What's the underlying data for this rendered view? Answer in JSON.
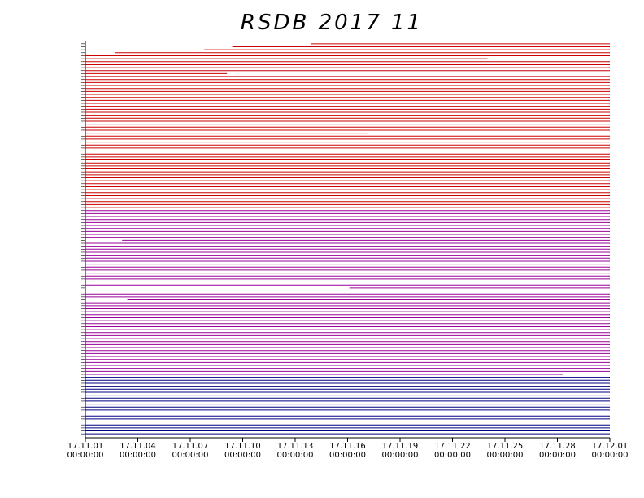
{
  "chart_data": {
    "type": "availability",
    "title": "RSDB  2017  11",
    "xlim": [
      0,
      30
    ],
    "xticks": [
      {
        "value": 0,
        "label": "17.11.01\n00:00:00"
      },
      {
        "value": 3,
        "label": "17.11.04\n00:00:00"
      },
      {
        "value": 6,
        "label": "17.11.07\n00:00:00"
      },
      {
        "value": 9,
        "label": "17.11.10\n00:00:00"
      },
      {
        "value": 12,
        "label": "17.11.13\n00:00:00"
      },
      {
        "value": 15,
        "label": "17.11.16\n00:00:00"
      },
      {
        "value": 18,
        "label": "17.11.19\n00:00:00"
      },
      {
        "value": 21,
        "label": "17.11.22\n00:00:00"
      },
      {
        "value": 24,
        "label": "17.11.25\n00:00:00"
      },
      {
        "value": 27,
        "label": "17.11.28\n00:00:00"
      },
      {
        "value": 30,
        "label": "17.12.01\n00:00:00"
      }
    ],
    "series": [
      {
        "color": "#cc0000",
        "values": [
          [
            12.9,
            30
          ],
          [
            8.4,
            30
          ],
          [
            6.8,
            30
          ],
          [
            1.7,
            30
          ],
          [
            0,
            30
          ],
          [
            0,
            23
          ],
          [
            0,
            30
          ],
          [
            0,
            30
          ],
          [
            0,
            30
          ],
          [
            0,
            30
          ],
          [
            0,
            8.1
          ],
          [
            0,
            30
          ],
          [
            0,
            30
          ],
          [
            0,
            30
          ],
          [
            0,
            30
          ],
          [
            0,
            30
          ],
          [
            0,
            30
          ],
          [
            0,
            30
          ],
          [
            0,
            30
          ],
          [
            0,
            30
          ],
          [
            0,
            30
          ],
          [
            0,
            30
          ],
          [
            0,
            30
          ],
          [
            0,
            30
          ],
          [
            0,
            30
          ],
          [
            0,
            30
          ],
          [
            0,
            30
          ],
          [
            0,
            30
          ],
          [
            0,
            30
          ],
          [
            0,
            30
          ],
          [
            0,
            16.2
          ],
          [
            0,
            30
          ],
          [
            0,
            30
          ],
          [
            0,
            30
          ],
          [
            0,
            30
          ],
          [
            0,
            30
          ],
          [
            0,
            8.2
          ],
          [
            0,
            30
          ],
          [
            0,
            30
          ],
          [
            0,
            30
          ],
          [
            0,
            30
          ],
          [
            0,
            30
          ],
          [
            0,
            30
          ],
          [
            0,
            30
          ],
          [
            0,
            30
          ],
          [
            0,
            30
          ],
          [
            0,
            30
          ],
          [
            0,
            30
          ],
          [
            0,
            30
          ],
          [
            0,
            30
          ],
          [
            0,
            30
          ],
          [
            0,
            30
          ],
          [
            0,
            30
          ],
          [
            0,
            30
          ],
          [
            0,
            30
          ],
          [
            0,
            30
          ]
        ]
      },
      {
        "color": "#990099",
        "values": [
          [
            0,
            30
          ],
          [
            0,
            30
          ],
          [
            0,
            30
          ],
          [
            0,
            30
          ],
          [
            0,
            30
          ],
          [
            0,
            30
          ],
          [
            0,
            30
          ],
          [
            0,
            30
          ],
          [
            0,
            30
          ],
          [
            0,
            30
          ],
          [
            2.1,
            30
          ],
          [
            0,
            30
          ],
          [
            0,
            30
          ],
          [
            0,
            30
          ],
          [
            0,
            30
          ],
          [
            0,
            30
          ],
          [
            0,
            30
          ],
          [
            0,
            30
          ],
          [
            0,
            30
          ],
          [
            0,
            30
          ],
          [
            0,
            30
          ],
          [
            0,
            30
          ],
          [
            0,
            30
          ],
          [
            0,
            30
          ],
          [
            0,
            30
          ],
          [
            0,
            30
          ],
          [
            15.1,
            30
          ],
          [
            0,
            30
          ],
          [
            0,
            30
          ],
          [
            0,
            30
          ],
          [
            2.4,
            30
          ],
          [
            0,
            30
          ],
          [
            0,
            30
          ],
          [
            0,
            30
          ],
          [
            0,
            30
          ],
          [
            0,
            30
          ],
          [
            0,
            30
          ],
          [
            0,
            30
          ],
          [
            0,
            30
          ],
          [
            0,
            30
          ],
          [
            0,
            30
          ],
          [
            0,
            30
          ],
          [
            0,
            30
          ],
          [
            0,
            30
          ],
          [
            0,
            30
          ],
          [
            0,
            30
          ],
          [
            0,
            30
          ],
          [
            0,
            30
          ],
          [
            0,
            30
          ],
          [
            0,
            30
          ],
          [
            0,
            30
          ],
          [
            0,
            30
          ],
          [
            0,
            30
          ],
          [
            0,
            30
          ],
          [
            0,
            30
          ],
          [
            0,
            27.3
          ]
        ]
      },
      {
        "color": "#000080",
        "values": [
          [
            0,
            30
          ],
          [
            0,
            30
          ],
          [
            0,
            30
          ],
          [
            0,
            30
          ],
          [
            0,
            30
          ],
          [
            0,
            30
          ],
          [
            0,
            30
          ],
          [
            0,
            30
          ],
          [
            0,
            30
          ],
          [
            0,
            30
          ],
          [
            0,
            30
          ],
          [
            0,
            30
          ],
          [
            0,
            30
          ],
          [
            0,
            30
          ],
          [
            0,
            30
          ],
          [
            0,
            30
          ],
          [
            0,
            30
          ],
          [
            0,
            30
          ],
          [
            0,
            30
          ],
          [
            0,
            30
          ]
        ]
      }
    ]
  }
}
